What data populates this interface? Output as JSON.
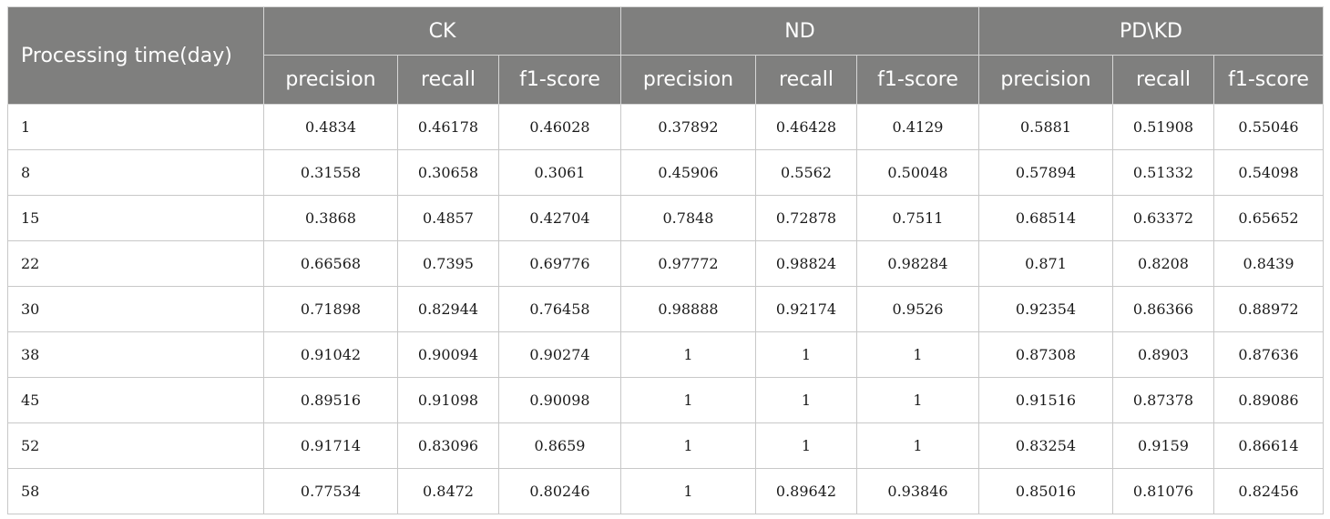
{
  "table": {
    "corner_label": "Processing time(day)",
    "groups": [
      "CK",
      "ND",
      "PD\\KD"
    ],
    "metrics": [
      "precision",
      "recall",
      "f1-score"
    ],
    "rows": [
      {
        "time": "1",
        "values": [
          "0.4834",
          "0.46178",
          "0.46028",
          "0.37892",
          "0.46428",
          "0.4129",
          "0.5881",
          "0.51908",
          "0.55046"
        ]
      },
      {
        "time": "8",
        "values": [
          "0.31558",
          "0.30658",
          "0.3061",
          "0.45906",
          "0.5562",
          "0.50048",
          "0.57894",
          "0.51332",
          "0.54098"
        ]
      },
      {
        "time": "15",
        "values": [
          "0.3868",
          "0.4857",
          "0.42704",
          "0.7848",
          "0.72878",
          "0.7511",
          "0.68514",
          "0.63372",
          "0.65652"
        ]
      },
      {
        "time": "22",
        "values": [
          "0.66568",
          "0.7395",
          "0.69776",
          "0.97772",
          "0.98824",
          "0.98284",
          "0.871",
          "0.8208",
          "0.8439"
        ]
      },
      {
        "time": "30",
        "values": [
          "0.71898",
          "0.82944",
          "0.76458",
          "0.98888",
          "0.92174",
          "0.9526",
          "0.92354",
          "0.86366",
          "0.88972"
        ]
      },
      {
        "time": "38",
        "values": [
          "0.91042",
          "0.90094",
          "0.90274",
          "1",
          "1",
          "1",
          "0.87308",
          "0.8903",
          "0.87636"
        ]
      },
      {
        "time": "45",
        "values": [
          "0.89516",
          "0.91098",
          "0.90098",
          "1",
          "1",
          "1",
          "0.91516",
          "0.87378",
          "0.89086"
        ]
      },
      {
        "time": "52",
        "values": [
          "0.91714",
          "0.83096",
          "0.8659",
          "1",
          "1",
          "1",
          "0.83254",
          "0.9159",
          "0.86614"
        ]
      },
      {
        "time": "58",
        "values": [
          "0.77534",
          "0.8472",
          "0.80246",
          "1",
          "0.89642",
          "0.93846",
          "0.85016",
          "0.81076",
          "0.82456"
        ]
      }
    ]
  }
}
